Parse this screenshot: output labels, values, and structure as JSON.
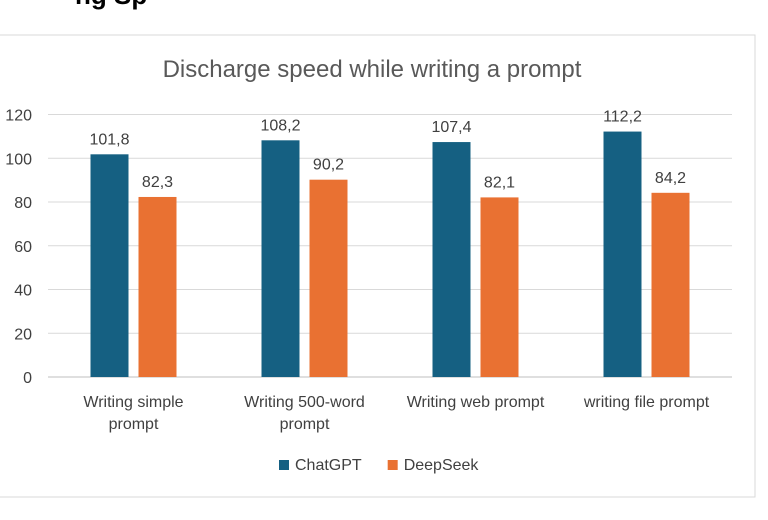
{
  "chart_data": {
    "type": "bar",
    "title": "Discharge speed while writing a prompt",
    "categories": [
      [
        "Writing simple",
        "prompt"
      ],
      [
        "Writing 500-word",
        "prompt"
      ],
      [
        "Writing web prompt"
      ],
      [
        "writing file prompt"
      ]
    ],
    "series": [
      {
        "name": "ChatGPT",
        "color": "#156082",
        "values": [
          101.8,
          108.2,
          107.4,
          112.2
        ],
        "labels": [
          "101,8",
          "108,2",
          "107,4",
          "112,2"
        ]
      },
      {
        "name": "DeepSeek",
        "color": "#E97132",
        "values": [
          82.3,
          90.2,
          82.1,
          84.2
        ],
        "labels": [
          "82,3",
          "90,2",
          "82,1",
          "84,2"
        ]
      }
    ],
    "ylim": [
      0,
      120
    ],
    "yticks": [
      0,
      20,
      40,
      60,
      80,
      100,
      120
    ],
    "grid": true,
    "legend": "bottom"
  }
}
